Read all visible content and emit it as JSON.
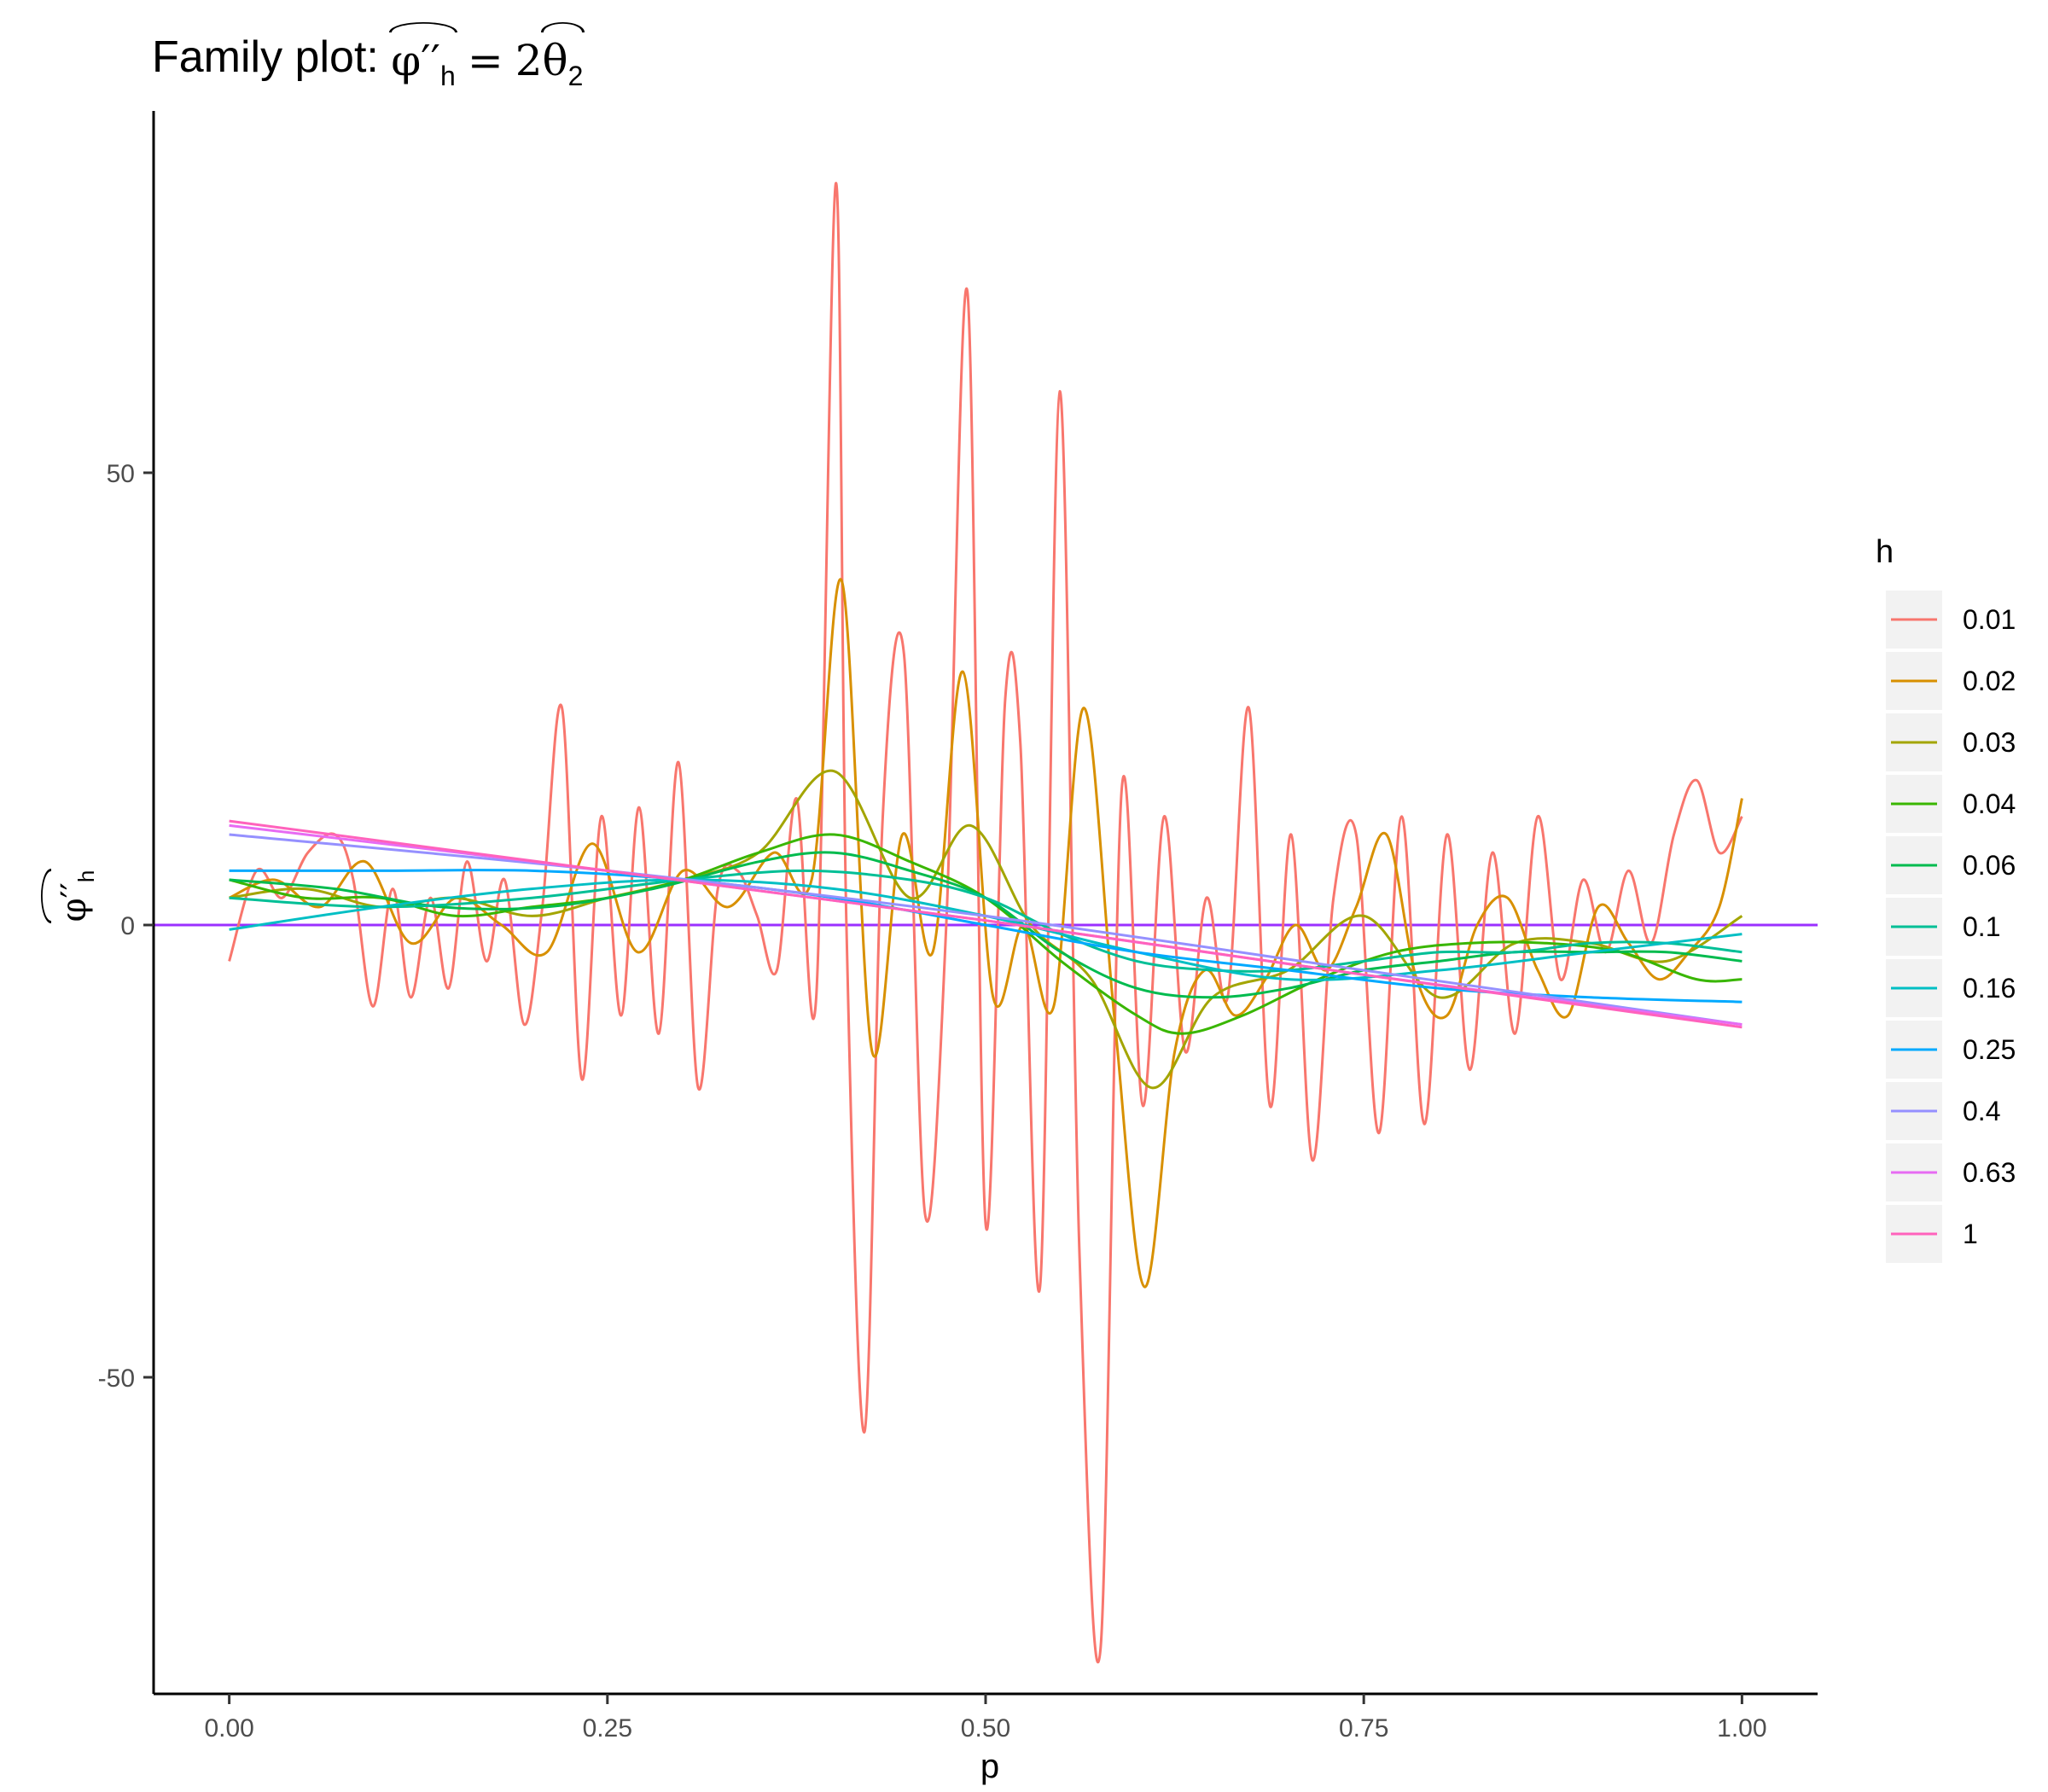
{
  "title": {
    "prefix": "Family plot: ",
    "lhs_symbol": "φ′′",
    "lhs_subscript": "h",
    "equals": "=",
    "rhs_coef": "2",
    "rhs_symbol": "θ",
    "rhs_subscript": "2"
  },
  "y_axis_label": {
    "symbol": "φ′′",
    "subscript": "h"
  },
  "legend_title": "h",
  "chart_data": {
    "type": "line",
    "xlabel": "p",
    "xlim": [
      -0.05,
      1.05
    ],
    "ylim": [
      -85,
      90
    ],
    "x_ticks": [
      0.0,
      0.25,
      0.5,
      0.75,
      1.0
    ],
    "x_tick_labels": [
      "0.00",
      "0.25",
      "0.50",
      "0.75",
      "1.00"
    ],
    "y_ticks": [
      -50,
      0,
      50
    ],
    "y_tick_labels": [
      "-50",
      "0",
      "50"
    ],
    "grid": false,
    "legend_position": "right",
    "reference_line": {
      "y": 0,
      "color": "#9B30FF"
    },
    "series": [
      {
        "name": "0.01",
        "color": "#F8766D",
        "x": [
          0.0,
          0.018,
          0.035,
          0.052,
          0.07,
          0.082,
          0.095,
          0.108,
          0.12,
          0.133,
          0.145,
          0.157,
          0.17,
          0.182,
          0.195,
          0.207,
          0.22,
          0.233,
          0.246,
          0.259,
          0.271,
          0.284,
          0.297,
          0.31,
          0.323,
          0.336,
          0.349,
          0.362,
          0.375,
          0.388,
          0.401,
          0.408,
          0.42,
          0.432,
          0.446,
          0.46,
          0.474,
          0.488,
          0.5,
          0.513,
          0.523,
          0.536,
          0.549,
          0.562,
          0.576,
          0.59,
          0.604,
          0.618,
          0.632,
          0.646,
          0.66,
          0.674,
          0.688,
          0.702,
          0.716,
          0.73,
          0.745,
          0.76,
          0.775,
          0.79,
          0.805,
          0.82,
          0.835,
          0.85,
          0.865,
          0.88,
          0.895,
          0.91,
          0.925,
          0.94,
          0.955,
          0.97,
          0.985,
          1.0
        ],
        "y": [
          -4,
          6,
          3,
          8,
          10,
          5,
          -9,
          4,
          -8,
          3,
          -7,
          7,
          -4,
          5,
          -11,
          2,
          24,
          -17,
          12,
          -10,
          13,
          -12,
          18,
          -18,
          4,
          6,
          1,
          -5,
          14,
          -8,
          82,
          0,
          -56,
          12,
          30,
          -32,
          0,
          70,
          -33,
          25,
          20,
          -40,
          59,
          -36,
          -80,
          15,
          -20,
          12,
          -14,
          3,
          -8,
          24,
          -20,
          10,
          -26,
          3,
          10,
          -23,
          12,
          -22,
          10,
          -16,
          8,
          -12,
          12,
          -6,
          5,
          -3,
          6,
          -2,
          10,
          16,
          8,
          12
        ]
      },
      {
        "name": "0.02",
        "color": "#D89000",
        "x": [
          0.0,
          0.03,
          0.06,
          0.09,
          0.12,
          0.15,
          0.18,
          0.21,
          0.24,
          0.27,
          0.3,
          0.33,
          0.36,
          0.385,
          0.405,
          0.425,
          0.445,
          0.465,
          0.485,
          0.505,
          0.525,
          0.545,
          0.565,
          0.585,
          0.605,
          0.625,
          0.645,
          0.665,
          0.685,
          0.705,
          0.725,
          0.745,
          0.765,
          0.785,
          0.805,
          0.825,
          0.845,
          0.865,
          0.885,
          0.905,
          0.925,
          0.945,
          0.965,
          0.985,
          1.0
        ],
        "y": [
          3,
          5,
          2,
          7,
          -2,
          3,
          0,
          -3,
          9,
          -3,
          6,
          2,
          8,
          5,
          38,
          -14,
          10,
          -3,
          28,
          -8,
          0,
          -9,
          24,
          -10,
          -40,
          -14,
          -5,
          -10,
          -6,
          0,
          -5,
          2,
          10,
          -6,
          -10,
          0,
          3,
          -5,
          -10,
          2,
          -2,
          -6,
          -3,
          2,
          14
        ]
      },
      {
        "name": "0.03",
        "color": "#A3A500",
        "x": [
          0.0,
          0.05,
          0.1,
          0.15,
          0.2,
          0.25,
          0.3,
          0.35,
          0.4,
          0.45,
          0.49,
          0.53,
          0.57,
          0.61,
          0.65,
          0.7,
          0.75,
          0.8,
          0.85,
          0.9,
          0.95,
          1.0
        ],
        "y": [
          3,
          4,
          2,
          3,
          1,
          3,
          5,
          8,
          17,
          3,
          11,
          0,
          -6,
          -18,
          -8,
          -5,
          1,
          -8,
          -2,
          -2,
          -4,
          1
        ]
      },
      {
        "name": "0.04",
        "color": "#39B600",
        "x": [
          0.0,
          0.05,
          0.1,
          0.15,
          0.2,
          0.25,
          0.3,
          0.35,
          0.4,
          0.45,
          0.5,
          0.55,
          0.6,
          0.63,
          0.67,
          0.72,
          0.77,
          0.82,
          0.87,
          0.92,
          0.97,
          1.0
        ],
        "y": [
          5,
          3,
          3,
          1,
          2,
          3,
          5,
          8,
          10,
          7,
          3,
          -4,
          -10,
          -12,
          -10,
          -6,
          -3,
          -2,
          -2,
          -3,
          -6,
          -6
        ]
      },
      {
        "name": "0.06",
        "color": "#00BB4E",
        "x": [
          0.0,
          0.07,
          0.14,
          0.21,
          0.28,
          0.35,
          0.4,
          0.45,
          0.5,
          0.55,
          0.6,
          0.65,
          0.7,
          0.75,
          0.8,
          0.85,
          0.9,
          0.95,
          1.0
        ],
        "y": [
          5,
          4,
          2,
          2,
          4,
          7,
          8,
          6,
          3,
          -3,
          -7,
          -8,
          -7,
          -5,
          -4,
          -3,
          -3,
          -3,
          -4
        ]
      },
      {
        "name": "0.1",
        "color": "#00BF96",
        "x": [
          0.0,
          0.1,
          0.2,
          0.3,
          0.38,
          0.45,
          0.5,
          0.55,
          0.6,
          0.65,
          0.7,
          0.75,
          0.8,
          0.85,
          0.9,
          0.95,
          1.0
        ],
        "y": [
          3,
          2,
          3,
          5,
          6,
          5,
          3,
          -1,
          -4,
          -5,
          -5,
          -4,
          -3,
          -3,
          -2,
          -2,
          -3
        ]
      },
      {
        "name": "0.16",
        "color": "#00BFC4",
        "x": [
          0.0,
          0.1,
          0.2,
          0.3,
          0.4,
          0.5,
          0.6,
          0.7,
          0.8,
          0.9,
          1.0
        ],
        "y": [
          -0.5,
          2,
          4,
          5,
          4,
          1,
          -3,
          -6,
          -5,
          -3,
          -1
        ]
      },
      {
        "name": "0.25",
        "color": "#00A9FF",
        "x": [
          0.0,
          0.1,
          0.2,
          0.3,
          0.4,
          0.5,
          0.6,
          0.7,
          0.8,
          0.9,
          1.0
        ],
        "y": [
          6,
          6,
          6,
          5,
          3,
          0,
          -3,
          -5,
          -7,
          -8,
          -8.5
        ]
      },
      {
        "name": "0.4",
        "color": "#9590FF",
        "x": [
          0.0,
          0.25,
          0.5,
          0.75,
          1.0
        ],
        "y": [
          10,
          6,
          1,
          -5,
          -11
        ]
      },
      {
        "name": "0.63",
        "color": "#E76BF3",
        "x": [
          0.0,
          0.25,
          0.5,
          0.75,
          1.0
        ],
        "y": [
          11,
          6,
          0.5,
          -5.5,
          -11
        ]
      },
      {
        "name": "1",
        "color": "#FF62BC",
        "x": [
          0.0,
          0.25,
          0.5,
          0.75,
          1.0
        ],
        "y": [
          11.5,
          6,
          0.5,
          -5.5,
          -11.3
        ]
      }
    ]
  }
}
